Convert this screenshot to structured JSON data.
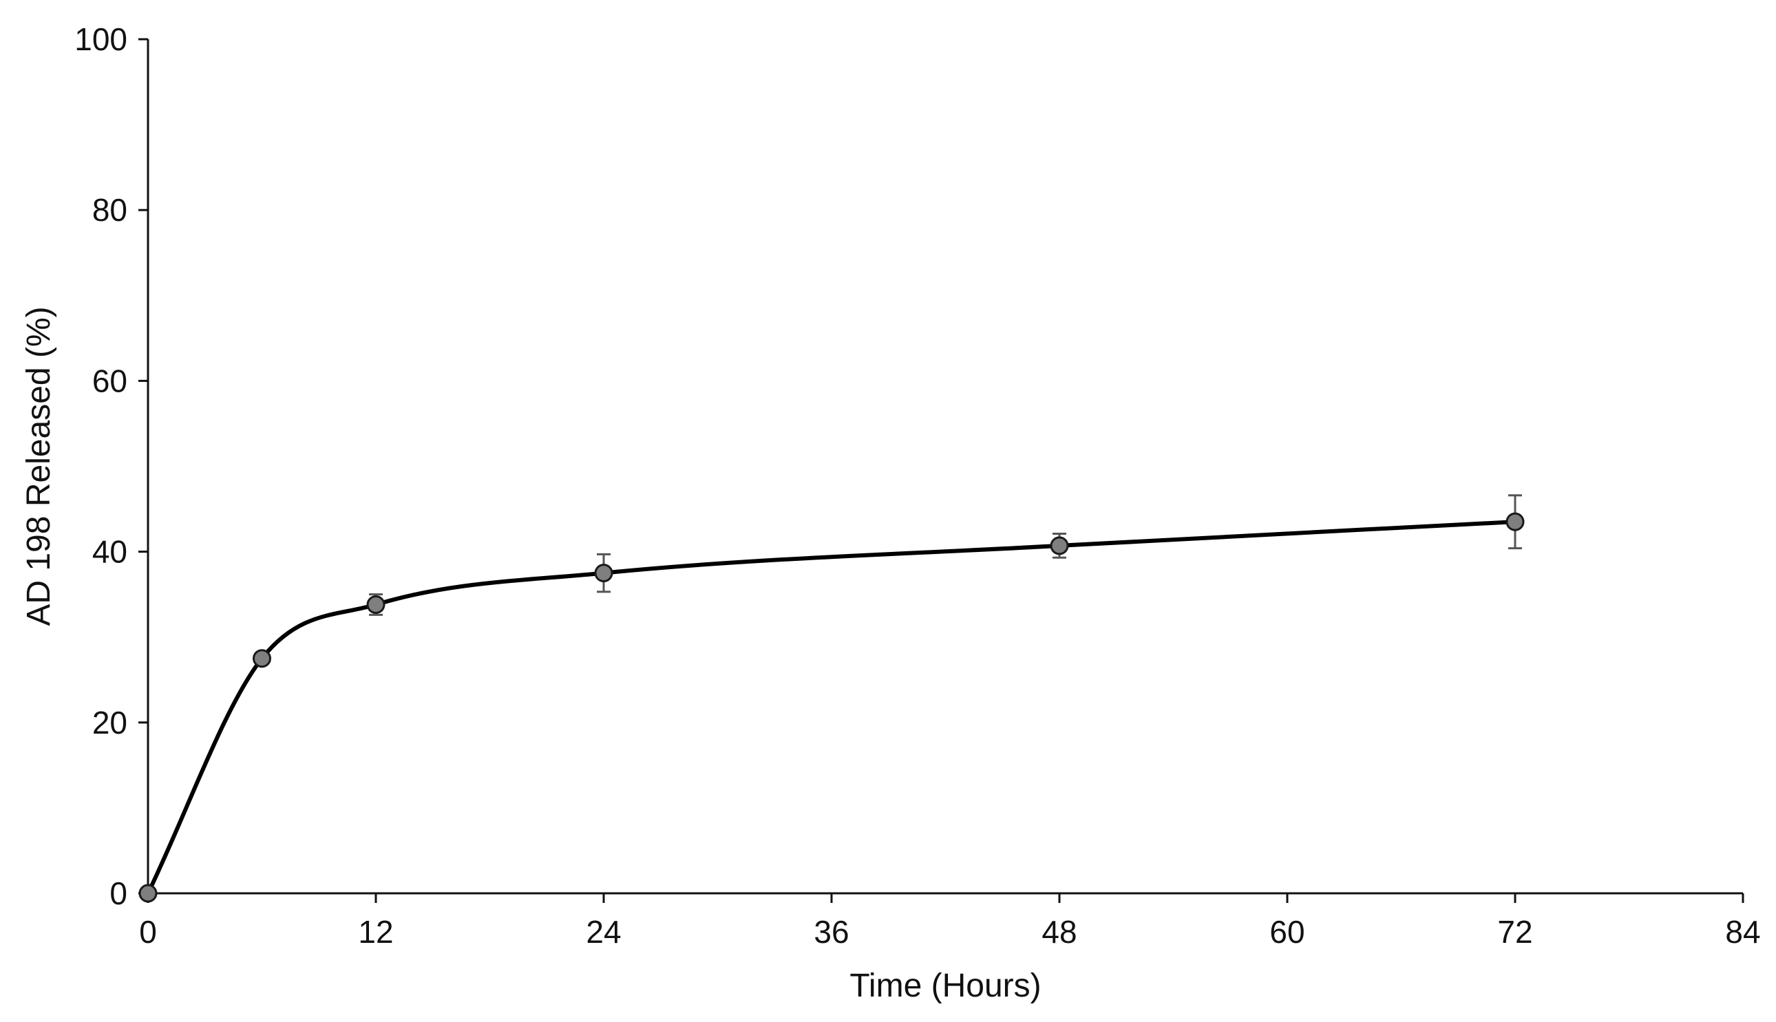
{
  "chart_data": {
    "type": "line",
    "title": "",
    "xlabel": "Time (Hours)",
    "ylabel": "AD 198 Released (%)",
    "xlim": [
      0,
      84
    ],
    "ylim": [
      0,
      100
    ],
    "xticks": [
      0,
      12,
      24,
      36,
      48,
      60,
      72,
      84
    ],
    "yticks": [
      0,
      20,
      40,
      60,
      80,
      100
    ],
    "xtick_labels": [
      "0",
      "12",
      "24",
      "36",
      "48",
      "60",
      "72",
      "84"
    ],
    "ytick_labels": [
      "0",
      "20",
      "40",
      "60",
      "80",
      "100"
    ],
    "grid": false,
    "legend": false,
    "smooth": true,
    "line_color": "#000000",
    "marker_fill": "#7f7f7f",
    "series": [
      {
        "x": [
          0,
          6,
          12,
          24,
          48,
          72
        ],
        "y": [
          0,
          27.5,
          33.8,
          37.5,
          40.7,
          43.5
        ],
        "error": [
          0,
          0.6,
          1.2,
          2.2,
          1.4,
          3.1
        ]
      }
    ]
  }
}
